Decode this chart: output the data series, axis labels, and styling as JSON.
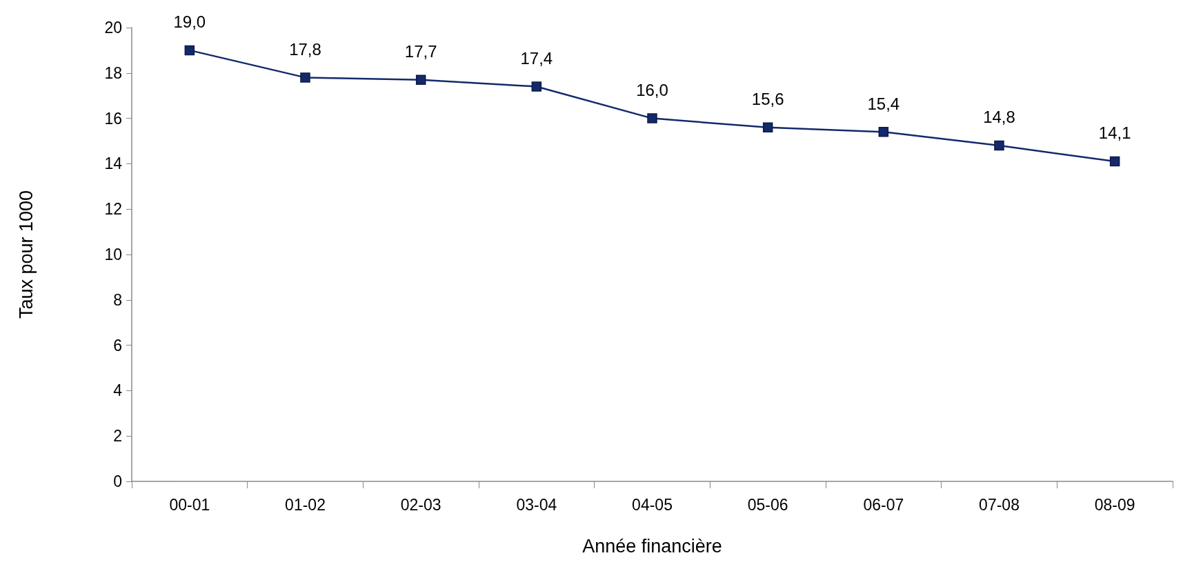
{
  "chart_data": {
    "type": "line",
    "xlabel": "Année financière",
    "ylabel": "Taux pour 1000",
    "categories": [
      "00-01",
      "01-02",
      "02-03",
      "03-04",
      "04-05",
      "05-06",
      "06-07",
      "07-08",
      "08-09"
    ],
    "series": [
      {
        "color": "#14296b",
        "values": [
          19.0,
          17.8,
          17.7,
          17.4,
          16.0,
          15.6,
          15.4,
          14.8,
          14.1
        ],
        "value_labels": [
          "19,0",
          "17,8",
          "17,7",
          "17,4",
          "16,0",
          "15,6",
          "15,4",
          "14,8",
          "14,1"
        ]
      }
    ],
    "ylim": [
      0,
      20
    ],
    "yticks": [
      0,
      2,
      4,
      6,
      8,
      10,
      12,
      14,
      16,
      18,
      20
    ],
    "grid": false,
    "marker": "square",
    "line_style": "solid"
  }
}
